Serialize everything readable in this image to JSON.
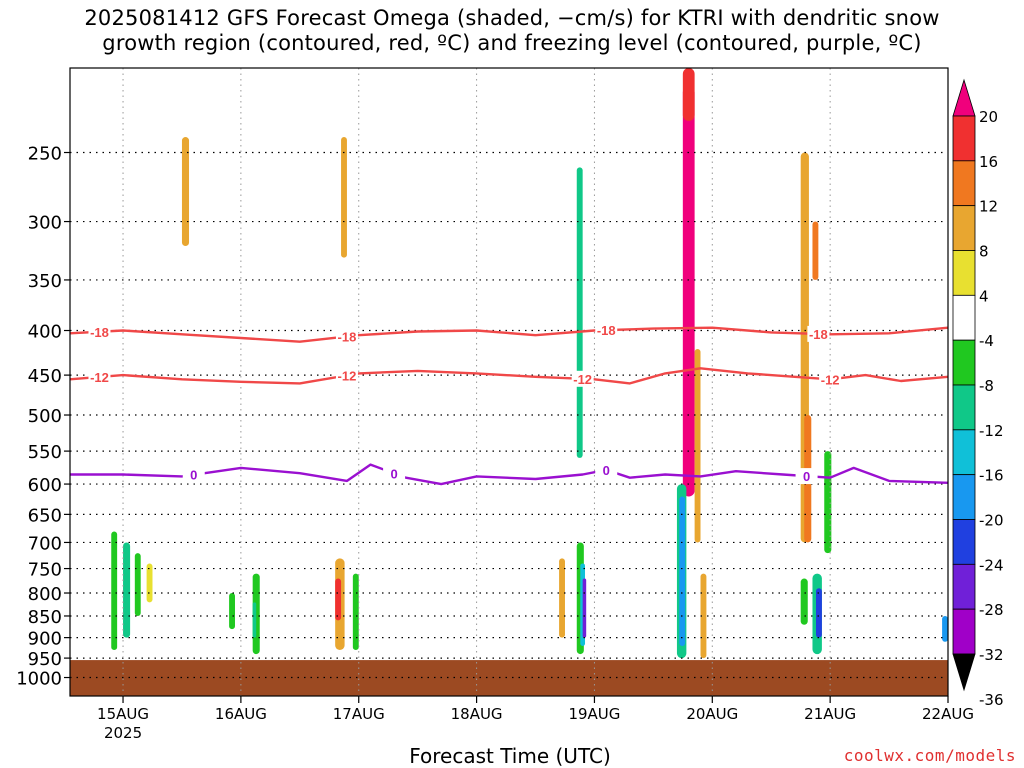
{
  "title_line1": "2025081412 GFS Forecast Omega (shaded, −cm/s) for KTRI with dendritic snow",
  "title_line2": "growth region (contoured, red, ºC) and freezing level (contoured, purple, ºC)",
  "xaxis_title": "Forecast Time (UTC)",
  "credit": "coolwx.com/models",
  "colors": {
    "ground": "#9c4a22",
    "dgz_contour": "#f04848",
    "freezing_contour": "#9a10d0",
    "grid": "#000000"
  },
  "chart_data": {
    "type": "heatmap",
    "y_axis": {
      "scale": "log-pressure, inverted",
      "unit": "hPa",
      "ticks": [
        250,
        300,
        350,
        400,
        450,
        500,
        550,
        600,
        650,
        700,
        750,
        800,
        850,
        900,
        950,
        1000
      ],
      "range": [
        1050,
        200
      ]
    },
    "x_axis": {
      "tick_labels": [
        "15AUG",
        "16AUG",
        "17AUG",
        "18AUG",
        "19AUG",
        "20AUG",
        "21AUG",
        "22AUG"
      ],
      "year_label": "2025",
      "range_days": [
        14.55,
        22.0
      ]
    },
    "colorbar": {
      "labels": [
        20,
        16,
        12,
        8,
        4,
        -4,
        -8,
        -12,
        -16,
        -20,
        -24,
        -28,
        -32,
        -36
      ],
      "bins": [
        {
          "color": "#f0007c"
        },
        {
          "color": "#f03030"
        },
        {
          "color": "#f07820"
        },
        {
          "color": "#e8a630"
        },
        {
          "color": "#e8e030"
        },
        {
          "color": "#ffffff"
        },
        {
          "color": "#20c820"
        },
        {
          "color": "#10c888"
        },
        {
          "color": "#10c0d8"
        },
        {
          "color": "#1898f0"
        },
        {
          "color": "#2040e0"
        },
        {
          "color": "#7020d8"
        },
        {
          "color": "#a000c8"
        },
        {
          "color": "#a8a8a8"
        }
      ]
    },
    "contours": [
      {
        "label": "-18",
        "color": "#f04848",
        "points": [
          [
            14.55,
            403
          ],
          [
            15.0,
            400
          ],
          [
            15.5,
            404
          ],
          [
            16.0,
            408
          ],
          [
            16.5,
            412
          ],
          [
            17.0,
            405
          ],
          [
            17.5,
            401
          ],
          [
            18.0,
            400
          ],
          [
            18.5,
            405
          ],
          [
            19.0,
            400
          ],
          [
            19.5,
            398
          ],
          [
            20.0,
            397
          ],
          [
            20.5,
            402
          ],
          [
            21.0,
            404
          ],
          [
            21.5,
            403
          ],
          [
            22.0,
            397
          ]
        ],
        "label_days": [
          14.8,
          16.9,
          19.1,
          20.9
        ]
      },
      {
        "label": "-12",
        "color": "#f04848",
        "points": [
          [
            14.55,
            455
          ],
          [
            15.0,
            450
          ],
          [
            15.5,
            455
          ],
          [
            16.0,
            458
          ],
          [
            16.5,
            460
          ],
          [
            17.0,
            448
          ],
          [
            17.5,
            445
          ],
          [
            18.0,
            448
          ],
          [
            18.5,
            452
          ],
          [
            19.0,
            455
          ],
          [
            19.3,
            460
          ],
          [
            19.6,
            448
          ],
          [
            19.9,
            442
          ],
          [
            20.3,
            448
          ],
          [
            20.7,
            452
          ],
          [
            21.0,
            455
          ],
          [
            21.3,
            450
          ],
          [
            21.6,
            457
          ],
          [
            22.0,
            452
          ]
        ],
        "label_days": [
          14.8,
          16.9,
          18.9,
          21.0
        ]
      },
      {
        "label": "0",
        "color": "#9a10d0",
        "points": [
          [
            14.55,
            585
          ],
          [
            15.0,
            585
          ],
          [
            15.5,
            588
          ],
          [
            16.0,
            575
          ],
          [
            16.5,
            583
          ],
          [
            16.9,
            595
          ],
          [
            17.1,
            570
          ],
          [
            17.4,
            590
          ],
          [
            17.7,
            600
          ],
          [
            18.0,
            588
          ],
          [
            18.5,
            592
          ],
          [
            18.9,
            585
          ],
          [
            19.1,
            578
          ],
          [
            19.3,
            590
          ],
          [
            19.6,
            585
          ],
          [
            19.9,
            588
          ],
          [
            20.2,
            580
          ],
          [
            20.6,
            585
          ],
          [
            21.0,
            590
          ],
          [
            21.2,
            575
          ],
          [
            21.5,
            595
          ],
          [
            22.0,
            598
          ]
        ],
        "label_days": [
          15.6,
          17.3,
          19.1,
          20.8
        ]
      }
    ],
    "shaded_cells": [
      {
        "t": 14.9,
        "dt": 0.05,
        "p": [
          680,
          930
        ],
        "bin": 6
      },
      {
        "t": 15.0,
        "dt": 0.06,
        "p": [
          700,
          900
        ],
        "bin": 7
      },
      {
        "t": 15.1,
        "dt": 0.05,
        "p": [
          720,
          850
        ],
        "bin": 6
      },
      {
        "t": 15.2,
        "dt": 0.05,
        "p": [
          740,
          820
        ],
        "bin": 4
      },
      {
        "t": 15.5,
        "dt": 0.06,
        "p": [
          240,
          320
        ],
        "bin": 3
      },
      {
        "t": 15.9,
        "dt": 0.05,
        "p": [
          800,
          880
        ],
        "bin": 6
      },
      {
        "t": 16.1,
        "dt": 0.06,
        "p": [
          760,
          940
        ],
        "bin": 6
      },
      {
        "t": 16.1,
        "dt": 0.03,
        "p": [
          820,
          900
        ],
        "bin": 7
      },
      {
        "t": 16.8,
        "dt": 0.08,
        "p": [
          730,
          930
        ],
        "bin": 3
      },
      {
        "t": 16.8,
        "dt": 0.05,
        "p": [
          770,
          860
        ],
        "bin": 1
      },
      {
        "t": 16.95,
        "dt": 0.05,
        "p": [
          760,
          930
        ],
        "bin": 6
      },
      {
        "t": 16.85,
        "dt": 0.05,
        "p": [
          240,
          330
        ],
        "bin": 3
      },
      {
        "t": 18.7,
        "dt": 0.05,
        "p": [
          730,
          900
        ],
        "bin": 3
      },
      {
        "t": 18.85,
        "dt": 0.06,
        "p": [
          700,
          940
        ],
        "bin": 6
      },
      {
        "t": 18.88,
        "dt": 0.04,
        "p": [
          740,
          920
        ],
        "bin": 8
      },
      {
        "t": 18.9,
        "dt": 0.03,
        "p": [
          770,
          900
        ],
        "bin": 11
      },
      {
        "t": 18.85,
        "dt": 0.05,
        "p": [
          260,
          560
        ],
        "bin": 7
      },
      {
        "t": 19.75,
        "dt": 0.1,
        "p": [
          210,
          620
        ],
        "bin": 0
      },
      {
        "t": 19.75,
        "dt": 0.1,
        "p": [
          200,
          230
        ],
        "bin": 1
      },
      {
        "t": 19.7,
        "dt": 0.08,
        "p": [
          600,
          950
        ],
        "bin": 7
      },
      {
        "t": 19.72,
        "dt": 0.05,
        "p": [
          620,
          920
        ],
        "bin": 9
      },
      {
        "t": 19.85,
        "dt": 0.05,
        "p": [
          420,
          700
        ],
        "bin": 3
      },
      {
        "t": 19.9,
        "dt": 0.05,
        "p": [
          760,
          950
        ],
        "bin": 3
      },
      {
        "t": 20.75,
        "dt": 0.07,
        "p": [
          250,
          700
        ],
        "bin": 3
      },
      {
        "t": 20.85,
        "dt": 0.05,
        "p": [
          300,
          350
        ],
        "bin": 2
      },
      {
        "t": 20.78,
        "dt": 0.06,
        "p": [
          500,
          700
        ],
        "bin": 2
      },
      {
        "t": 20.75,
        "dt": 0.06,
        "p": [
          770,
          870
        ],
        "bin": 6
      },
      {
        "t": 20.85,
        "dt": 0.08,
        "p": [
          760,
          940
        ],
        "bin": 7
      },
      {
        "t": 20.88,
        "dt": 0.05,
        "p": [
          790,
          900
        ],
        "bin": 10
      },
      {
        "t": 20.95,
        "dt": 0.06,
        "p": [
          550,
          720
        ],
        "bin": 6
      },
      {
        "t": 21.95,
        "dt": 0.05,
        "p": [
          850,
          910
        ],
        "bin": 9
      }
    ]
  }
}
